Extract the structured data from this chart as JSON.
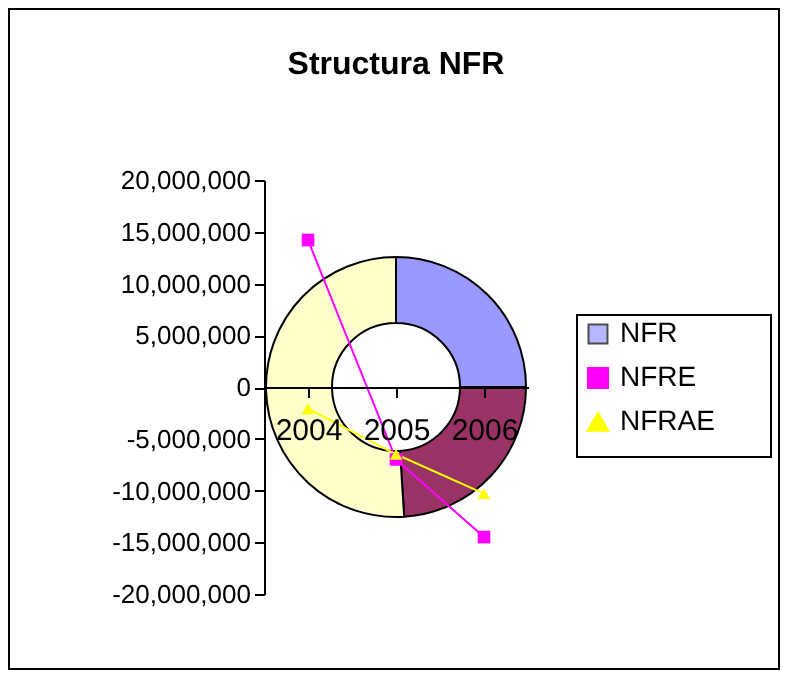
{
  "chart_data": [
    {
      "type": "donut",
      "title": "Structura NFR",
      "categories": [
        "2004",
        "2005",
        "2006"
      ],
      "series": [
        {
          "name": "NFR",
          "values": [
            25,
            24,
            51
          ],
          "colors": [
            "#9999ff",
            "#993366",
            "#ffffcc"
          ]
        }
      ],
      "legend": "right"
    },
    {
      "type": "line",
      "categories": [
        "2004",
        "2005",
        "2006"
      ],
      "series": [
        {
          "name": "NFRE",
          "color": "#ff00ff",
          "marker": "square",
          "values": [
            14200000,
            -7000000,
            -14500000
          ]
        },
        {
          "name": "NFRAE",
          "color": "#ffff00",
          "marker": "triangle",
          "values": [
            -2100000,
            -6500000,
            -10300000
          ]
        }
      ],
      "ylim": [
        -20000000,
        20000000
      ],
      "yticks": [
        {
          "value": -20000000,
          "label": "-20,000,000"
        },
        {
          "value": -15000000,
          "label": "-15,000,000"
        },
        {
          "value": -10000000,
          "label": "-10,000,000"
        },
        {
          "value": -5000000,
          "label": "-5,000,000"
        },
        {
          "value": 0,
          "label": "0"
        },
        {
          "value": 5000000,
          "label": "5,000,000"
        },
        {
          "value": 10000000,
          "label": "10,000,000"
        },
        {
          "value": 15000000,
          "label": "15,000,000"
        },
        {
          "value": 20000000,
          "label": "20,000,000"
        }
      ],
      "legend": "right",
      "grid": false
    }
  ]
}
